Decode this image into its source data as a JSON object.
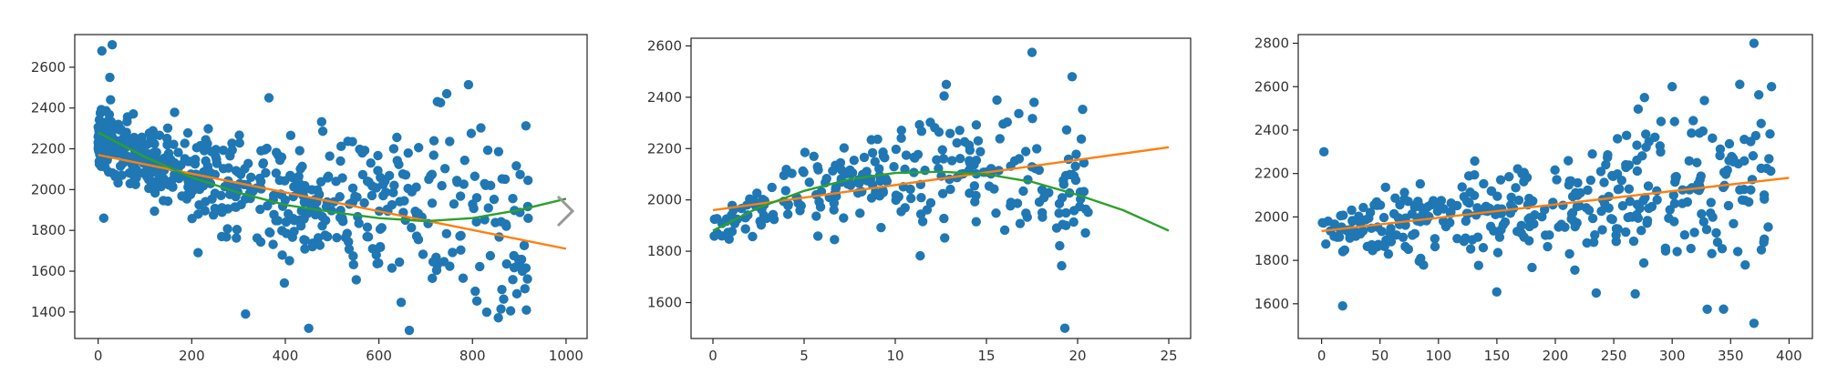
{
  "figure": {
    "nav_arrow_icon": "chevron-right-icon"
  },
  "chart_data": [
    {
      "type": "scatter",
      "title": "",
      "xlabel": "",
      "ylabel": "",
      "xlim": [
        -50,
        1045
      ],
      "ylim": [
        1270,
        2760
      ],
      "xticks": [
        0,
        200,
        400,
        600,
        800,
        1000
      ],
      "yticks": [
        1400,
        1600,
        1800,
        2000,
        2200,
        2400,
        2600
      ],
      "grid": false,
      "legend": "none",
      "colors": {
        "points": "#1f77b4",
        "linear_fit": "#ff7f0e",
        "poly_fit": "#2ca02c"
      },
      "point_count": 620,
      "x_range": [
        0,
        920
      ],
      "trend": {
        "at_x": [
          0,
          600,
          1000
        ],
        "y": [
          2260,
          1920,
          1710
        ]
      },
      "fit_linear": {
        "x": [
          0,
          1000
        ],
        "y": [
          2170,
          1710
        ]
      },
      "fit_poly": {
        "x": [
          0,
          100,
          200,
          300,
          400,
          500,
          600,
          700,
          800,
          900,
          1000
        ],
        "y": [
          2280,
          2160,
          2060,
          1985,
          1925,
          1890,
          1860,
          1845,
          1860,
          1900,
          1955
        ]
      },
      "outliers": [
        {
          "x": 8,
          "y": 2680
        },
        {
          "x": 30,
          "y": 2710
        },
        {
          "x": 25,
          "y": 2550
        },
        {
          "x": 12,
          "y": 1860
        },
        {
          "x": 450,
          "y": 1320
        },
        {
          "x": 665,
          "y": 1310
        },
        {
          "x": 315,
          "y": 1390
        },
        {
          "x": 745,
          "y": 2470
        },
        {
          "x": 365,
          "y": 2450
        }
      ]
    },
    {
      "type": "scatter",
      "title": "",
      "xlabel": "",
      "ylabel": "",
      "xlim": [
        -1.2,
        26.2
      ],
      "ylim": [
        1460,
        2630
      ],
      "xticks": [
        0,
        5,
        10,
        15,
        20,
        25
      ],
      "yticks": [
        1600,
        1800,
        2000,
        2200,
        2400,
        2600
      ],
      "grid": false,
      "legend": "none",
      "colors": {
        "points": "#1f77b4",
        "linear_fit": "#ff7f0e",
        "poly_fit": "#2ca02c"
      },
      "point_count": 260,
      "x_range": [
        0,
        20.6
      ],
      "fit_linear": {
        "x": [
          0,
          25
        ],
        "y": [
          1960,
          2205
        ]
      },
      "fit_poly": {
        "x": [
          0,
          2.5,
          5,
          7.5,
          10,
          12.5,
          15,
          17.5,
          20,
          22.5,
          25
        ],
        "y": [
          1880,
          1970,
          2035,
          2080,
          2105,
          2110,
          2100,
          2070,
          2020,
          1960,
          1880
        ]
      },
      "outliers": [
        {
          "x": 17.5,
          "y": 2575
        },
        {
          "x": 19.3,
          "y": 1500
        },
        {
          "x": 19.7,
          "y": 2480
        },
        {
          "x": 12.8,
          "y": 2450
        }
      ]
    },
    {
      "type": "scatter",
      "title": "",
      "xlabel": "",
      "ylabel": "",
      "xlim": [
        -20,
        420
      ],
      "ylim": [
        1440,
        2840
      ],
      "xticks": [
        0,
        50,
        100,
        150,
        200,
        250,
        300,
        350,
        400
      ],
      "yticks": [
        1600,
        1800,
        2000,
        2200,
        2400,
        2600,
        2800
      ],
      "grid": false,
      "legend": "none",
      "colors": {
        "points": "#1f77b4",
        "linear_fit": "#ff7f0e"
      },
      "point_count": 380,
      "x_range": [
        0,
        385
      ],
      "fit_linear": {
        "x": [
          0,
          400
        ],
        "y": [
          1935,
          2180
        ]
      },
      "outliers": [
        {
          "x": 370,
          "y": 2800
        },
        {
          "x": 370,
          "y": 1510
        },
        {
          "x": 385,
          "y": 2600
        },
        {
          "x": 2,
          "y": 2300
        },
        {
          "x": 18,
          "y": 1590
        },
        {
          "x": 330,
          "y": 1575
        },
        {
          "x": 235,
          "y": 1650
        },
        {
          "x": 300,
          "y": 2600
        }
      ]
    }
  ]
}
